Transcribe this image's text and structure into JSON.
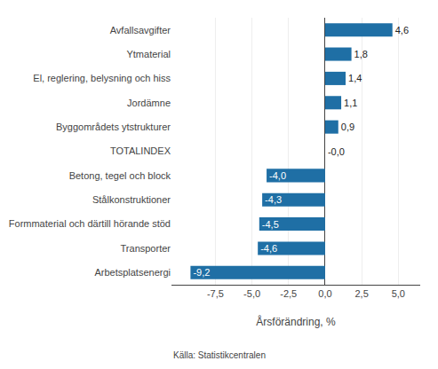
{
  "chart_data": {
    "type": "bar",
    "orientation": "horizontal",
    "categories": [
      "Arbetsplatsenergi",
      "Transporter",
      "Formmaterial och därtill hörande stöd",
      "Stålkonstruktioner",
      "Betong, tegel och block",
      "TOTALINDEX",
      "Byggområdets ytstrukturer",
      "Jordämne",
      "El, reglering, belysning och hiss",
      "Ytmaterial",
      "Avfallsavgifter"
    ],
    "values": [
      -9.2,
      -4.6,
      -4.5,
      -4.3,
      -4.0,
      -0.0,
      0.9,
      1.1,
      1.4,
      1.8,
      4.6
    ],
    "value_labels": [
      "-9,2",
      "-4,6",
      "-4,5",
      "-4,3",
      "-4,0",
      "-0,0",
      "0,9",
      "1,1",
      "1,4",
      "1,8",
      "4,6"
    ],
    "data_labels": true,
    "color": "#1f6fa5",
    "xlabel": "Årsförändring, %",
    "annotations": [
      "Källa: Statistikcentralen"
    ],
    "xlim": [
      -10.5,
      6.5
    ],
    "xticks": [
      {
        "value": -7.5,
        "label": "-7,5"
      },
      {
        "value": -5.0,
        "label": "-5,0"
      },
      {
        "value": -2.5,
        "label": "-2,5"
      },
      {
        "value": 0.0,
        "label": "0,0"
      },
      {
        "value": 2.5,
        "label": "2,5"
      },
      {
        "value": 5.0,
        "label": "5,0"
      }
    ],
    "grid": true
  }
}
